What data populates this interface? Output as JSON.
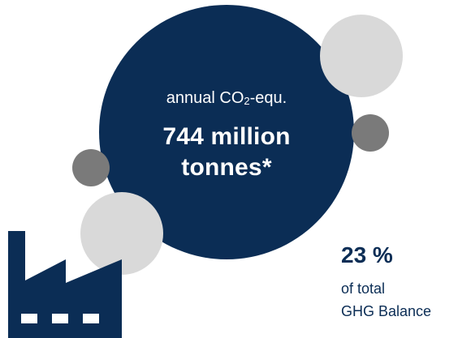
{
  "main_stat": {
    "label_prefix": "annual CO",
    "label_subscript": "2",
    "label_suffix": "-equ.",
    "value_line_1": "744 million",
    "value_line_2": "tonnes*"
  },
  "share": {
    "value": "23 %",
    "line_1": "of total",
    "line_2": "GHG Balance"
  },
  "icons": {
    "factory": "factory-icon"
  },
  "colors": {
    "navy": "#0b2d55",
    "light_gray": "#d9d9d9",
    "mid_gray": "#7a7a7a"
  }
}
